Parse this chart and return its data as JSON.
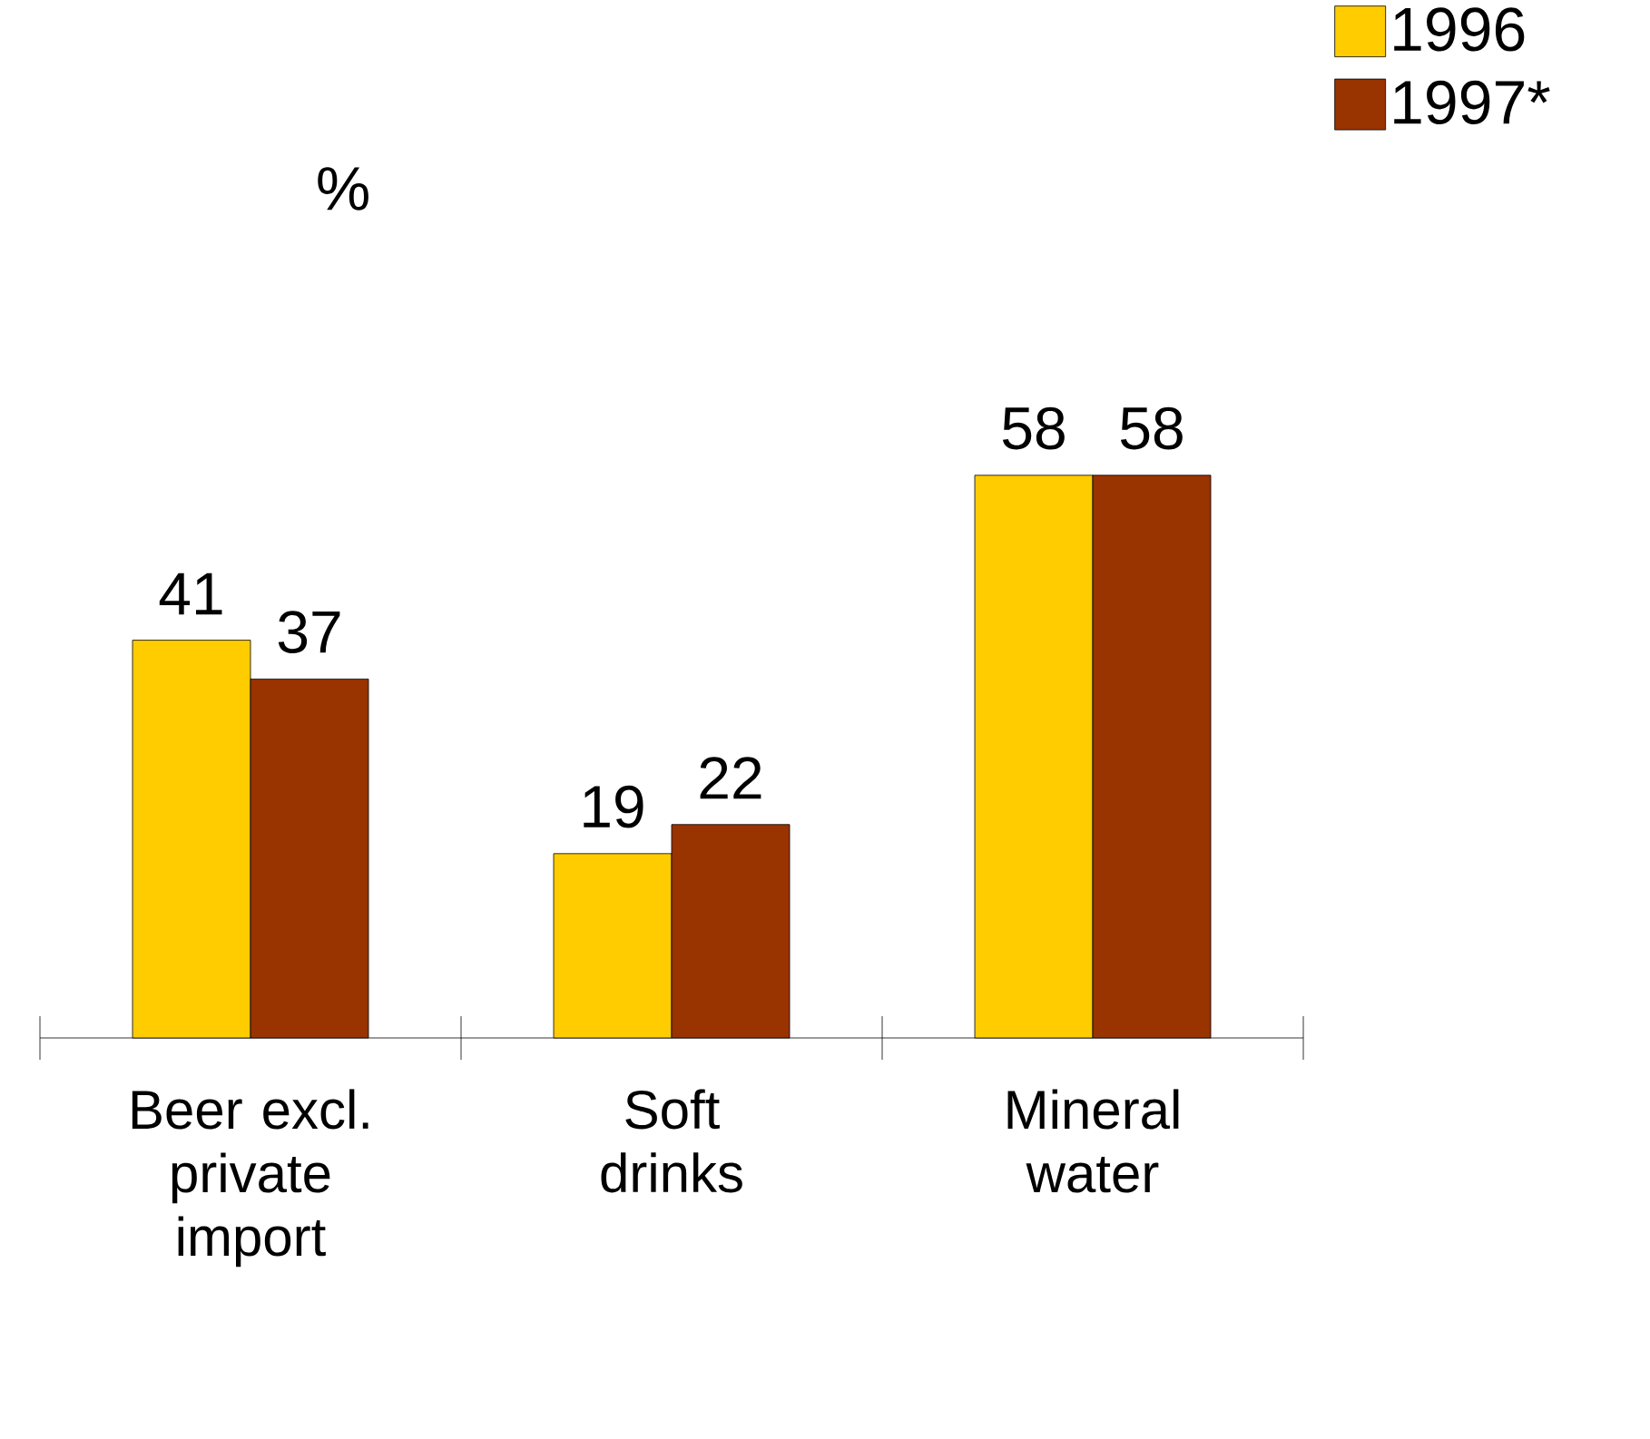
{
  "chart_data": {
    "type": "bar",
    "ylabel": "%",
    "categories": [
      "Beer excl. private import",
      "Soft drinks",
      "Mineral water"
    ],
    "series": [
      {
        "name": "1996",
        "color": "#ffcc00",
        "values": [
          41,
          19,
          58
        ]
      },
      {
        "name": "1997*",
        "color": "#993300",
        "values": [
          37,
          22,
          58
        ]
      }
    ],
    "data_labels": true,
    "legend": "top right",
    "grid": false
  }
}
